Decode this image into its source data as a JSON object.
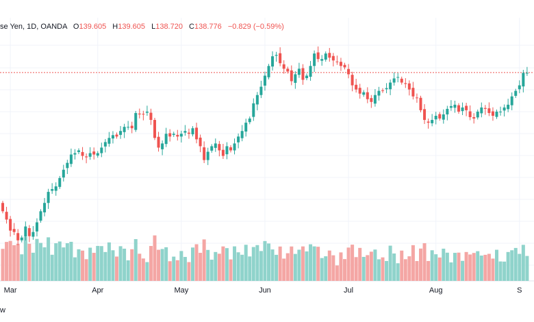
{
  "header": {
    "symbol": "se Yen, 1D, OANDA",
    "open_label": "O",
    "open": "139.605",
    "high_label": "H",
    "high": "139.605",
    "low_label": "L",
    "low": "138.720",
    "close_label": "C",
    "close": "138.776",
    "change": "−0.829 (−0.59%)"
  },
  "footer": {
    "brand_fragment": "w"
  },
  "colors": {
    "up": "#26a69a",
    "down": "#ef5350",
    "up_vol": "#8fd3cb",
    "down_vol": "#f4a6a4",
    "price_line": "#ef5350"
  },
  "chart_data": {
    "type": "candlestick",
    "x_ticks": [
      "Mar",
      "Apr",
      "May",
      "Jun",
      "Jul",
      "Aug",
      "S"
    ],
    "current_price": 138.776,
    "closes": [
      128.8,
      128.2,
      127.4,
      127.3,
      126.7,
      126.9,
      127.7,
      127.0,
      127.3,
      128.0,
      128.8,
      129.4,
      130.2,
      130.4,
      130.6,
      131.2,
      131.8,
      132.3,
      132.9,
      133.0,
      133.2,
      132.8,
      132.7,
      133.0,
      132.9,
      133.0,
      133.4,
      133.8,
      134.1,
      134.3,
      134.2,
      134.6,
      134.9,
      134.9,
      134.8,
      135.9,
      135.8,
      135.8,
      136.0,
      135.4,
      134.1,
      133.4,
      133.7,
      134.4,
      134.2,
      134.4,
      134.2,
      134.4,
      134.6,
      134.4,
      134.8,
      134.0,
      133.5,
      132.5,
      133.1,
      133.5,
      133.7,
      133.2,
      132.8,
      133.5,
      133.2,
      133.7,
      134.2,
      134.6,
      135.2,
      135.5,
      136.6,
      137.2,
      137.8,
      138.6,
      139.3,
      140.0,
      140.1,
      139.5,
      139.1,
      138.9,
      138.2,
      138.7,
      139.1,
      138.3,
      138.6,
      139.3,
      140.2,
      139.8,
      139.8,
      140.2,
      139.9,
      139.7,
      139.6,
      139.3,
      139.2,
      138.7,
      137.9,
      137.6,
      137.3,
      137.4,
      136.9,
      136.7,
      137.2,
      137.5,
      137.5,
      137.7,
      138.1,
      138.4,
      138.5,
      138.1,
      138.0,
      137.6,
      137.1,
      137.0,
      136.1,
      135.4,
      135.2,
      135.4,
      135.7,
      135.5,
      135.8,
      136.2,
      136.4,
      136.5,
      136.0,
      136.3,
      136.1,
      135.6,
      135.5,
      136.0,
      136.3,
      136.2,
      135.9,
      135.7,
      136.0,
      136.0,
      136.3,
      136.5,
      137.1,
      137.5,
      137.9,
      138.8,
      138.8
    ]
  }
}
